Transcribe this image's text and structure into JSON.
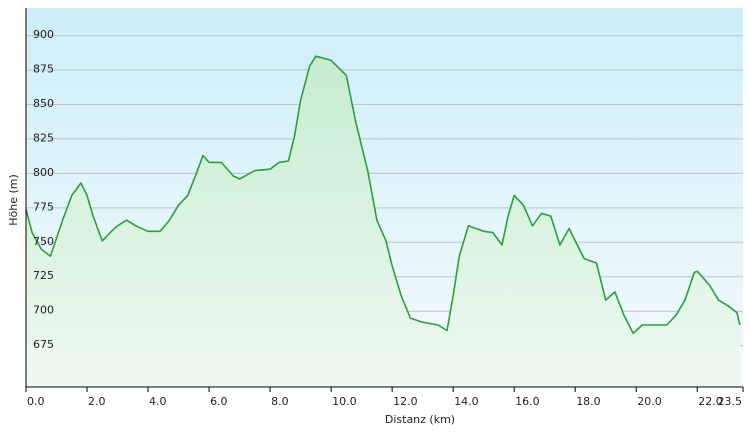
{
  "chart_data": {
    "type": "area",
    "x_label": "Distanz  (km)",
    "y_label": "Höhe (m)",
    "x": [
      0.0,
      0.2,
      0.5,
      0.8,
      1.0,
      1.2,
      1.5,
      1.8,
      2.0,
      2.2,
      2.5,
      2.8,
      3.0,
      3.3,
      3.6,
      4.0,
      4.4,
      4.7,
      5.0,
      5.3,
      5.6,
      5.8,
      6.0,
      6.4,
      6.8,
      7.0,
      7.5,
      8.0,
      8.3,
      8.6,
      8.8,
      9.0,
      9.3,
      9.5,
      10.0,
      10.5,
      10.8,
      11.2,
      11.5,
      11.8,
      12.0,
      12.3,
      12.6,
      13.0,
      13.5,
      13.8,
      14.0,
      14.2,
      14.5,
      15.0,
      15.3,
      15.6,
      15.8,
      16.0,
      16.3,
      16.6,
      16.9,
      17.2,
      17.5,
      17.8,
      18.0,
      18.3,
      18.7,
      19.0,
      19.3,
      19.6,
      19.9,
      20.2,
      20.6,
      21.0,
      21.3,
      21.6,
      21.9,
      22.0,
      22.4,
      22.7,
      23.0,
      23.3,
      23.4
    ],
    "y": [
      774,
      757,
      745,
      740,
      753,
      766,
      784,
      793,
      784,
      769,
      751,
      758,
      762,
      766,
      762,
      758,
      758,
      766,
      777,
      784,
      801,
      813,
      808,
      808,
      798,
      796,
      802,
      803,
      808,
      809,
      827,
      853,
      878,
      885,
      882,
      871,
      838,
      802,
      766,
      751,
      733,
      711,
      695,
      692,
      690,
      686,
      711,
      740,
      762,
      758,
      757,
      748,
      769,
      784,
      777,
      762,
      771,
      769,
      748,
      760,
      751,
      738,
      735,
      708,
      714,
      697,
      684,
      690,
      690,
      690,
      697,
      708,
      728,
      729,
      719,
      708,
      704,
      699,
      690
    ],
    "color": "#2e9e3a",
    "xlim": [
      0,
      23.5
    ],
    "ylim": [
      645,
      920
    ],
    "xticks": [
      {
        "value": 0,
        "label": "0.0"
      },
      {
        "value": 2,
        "label": "2.0"
      },
      {
        "value": 4,
        "label": "4.0"
      },
      {
        "value": 6,
        "label": "6.0"
      },
      {
        "value": 8,
        "label": "8.0"
      },
      {
        "value": 10,
        "label": "10.0"
      },
      {
        "value": 12,
        "label": "12.0"
      },
      {
        "value": 14,
        "label": "14.0"
      },
      {
        "value": 16,
        "label": "16.0"
      },
      {
        "value": 18,
        "label": "18.0"
      },
      {
        "value": 20,
        "label": "20.0"
      },
      {
        "value": 22,
        "label": "22.0"
      },
      23.5
    ],
    "yticks": [
      675,
      700,
      725,
      750,
      775,
      800,
      825,
      850,
      875,
      900
    ],
    "grid": true
  }
}
